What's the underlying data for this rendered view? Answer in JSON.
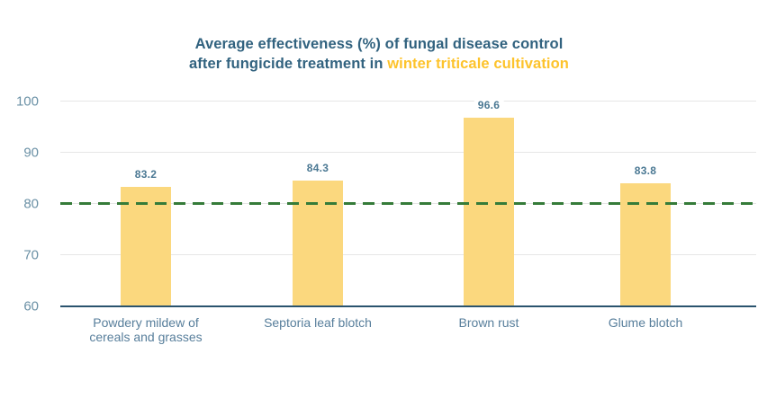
{
  "chart": {
    "title": {
      "line1": "Average effectiveness (%) of fungal disease control",
      "line2_prefix": "after fungicide treatment in ",
      "line2_highlight": "winter triticale cultivation"
    }
  },
  "chart_data": {
    "type": "bar",
    "title": "Average effectiveness (%) of fungal disease control after fungicide treatment in winter triticale cultivation",
    "title_highlight_text": "winter triticale cultivation",
    "categories": [
      "Powdery mildew of\ncereals and grasses",
      "Septoria leaf blotch",
      "Brown rust",
      "Glume blotch"
    ],
    "values": [
      83.2,
      84.3,
      96.6,
      83.8
    ],
    "value_labels": [
      "83.2",
      "84.3",
      "96.6",
      "83.8"
    ],
    "xlabel": "",
    "ylabel": "",
    "ylim": [
      60,
      100
    ],
    "y_ticks": [
      60,
      70,
      80,
      90,
      100
    ],
    "grid": true,
    "legend": false,
    "threshold": {
      "value": 80,
      "style": "dashed",
      "color": "#357B39"
    },
    "colors": {
      "bar": "#FBD87E",
      "title_navy": "#31627F",
      "title_highlight": "#FDC32B",
      "value_label": "#4A7893",
      "tick_label": "#6B91A6",
      "category_label": "#577E9B",
      "gridline": "#E6E6E6",
      "axis_line": "#2A536E",
      "background": "#FFFFFF"
    }
  }
}
